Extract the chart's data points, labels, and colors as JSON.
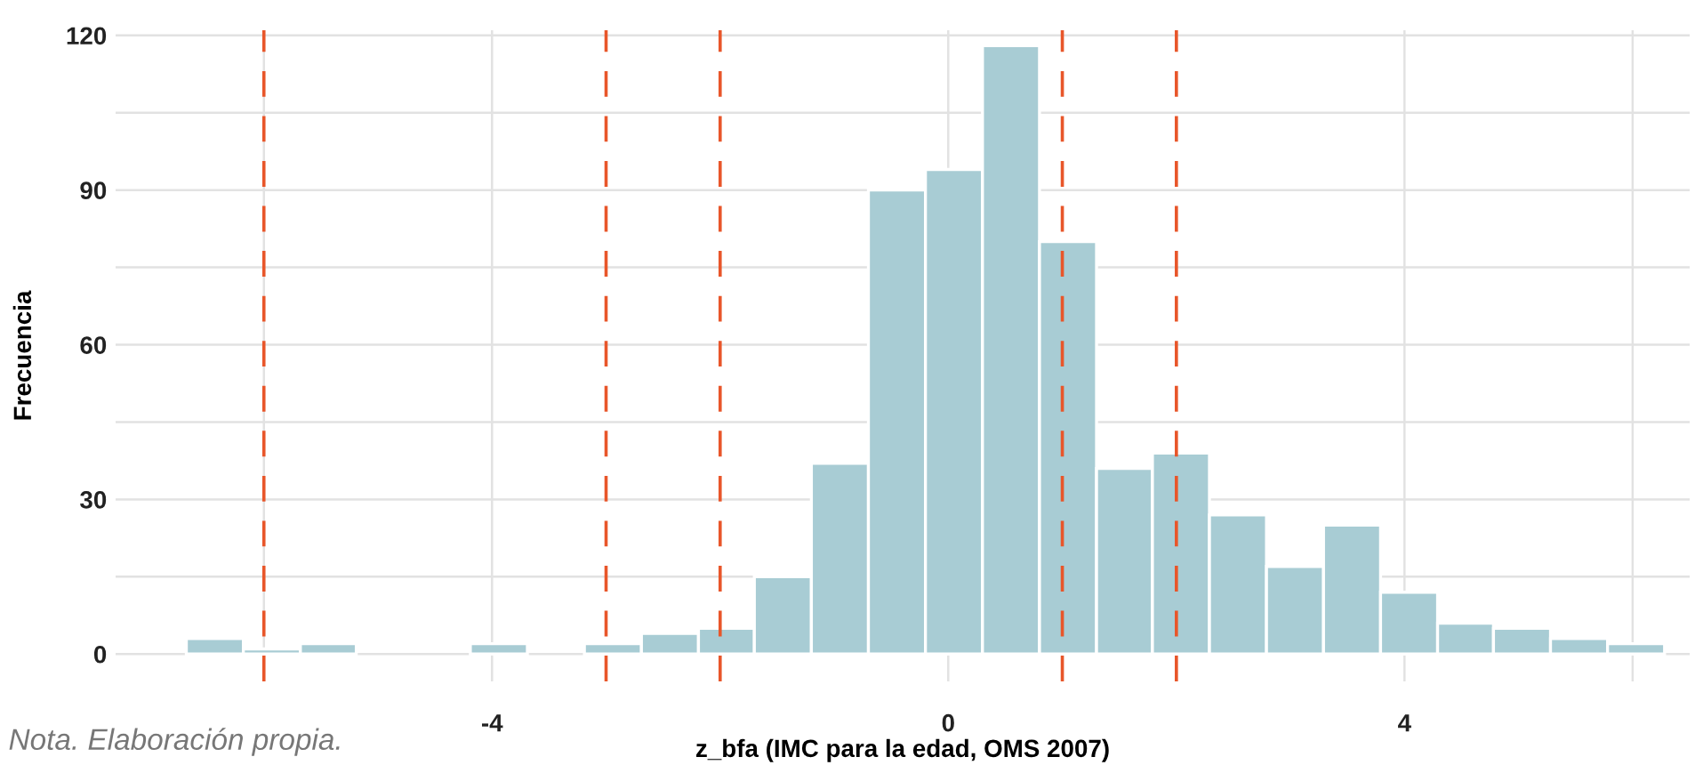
{
  "chart_data": {
    "type": "histogram",
    "xlabel": "z_bfa (IMC para la edad, OMS 2007)",
    "ylabel": "Frecuencia",
    "annotations": [
      "Nota. Elaboración propia."
    ],
    "bins": [
      -6.68,
      -6.18,
      -5.68,
      -5.19,
      -4.19,
      -3.69,
      -3.19,
      -2.69,
      -2.19,
      -1.7,
      -1.2,
      -0.7,
      -0.2,
      0.3,
      0.8,
      1.3,
      1.79,
      2.29,
      2.79,
      3.29,
      3.79,
      4.29,
      4.78,
      5.28,
      5.78,
      6.28
    ],
    "values": [
      3,
      1,
      2,
      0,
      2,
      0,
      2,
      4,
      5,
      15,
      37,
      90,
      94,
      118,
      80,
      36,
      39,
      27,
      17,
      25,
      12,
      6,
      5,
      3,
      2
    ],
    "color": "#a8ccd4",
    "xlim": [
      -7.3,
      6.5
    ],
    "xticks": [
      {
        "value": -6,
        "label": null
      },
      -4,
      0,
      4,
      {
        "value": 6,
        "label": null
      }
    ],
    "ylim": [
      -5.3,
      121
    ],
    "yticks": [
      0,
      {
        "value": 15,
        "label": null
      },
      30,
      {
        "value": 45,
        "label": null
      },
      60,
      {
        "value": 75,
        "label": null
      },
      90,
      {
        "value": 105,
        "label": null
      },
      120
    ],
    "grid": true,
    "legend": false,
    "ref_lines": [
      {
        "axis": "x",
        "value": -6,
        "color": "#e8562a",
        "line_style": "dashed"
      },
      {
        "axis": "x",
        "value": -3,
        "color": "#e8562a",
        "line_style": "dashed"
      },
      {
        "axis": "x",
        "value": -2,
        "color": "#e8562a",
        "line_style": "dashed"
      },
      {
        "axis": "x",
        "value": 1,
        "color": "#e8562a",
        "line_style": "dashed"
      },
      {
        "axis": "x",
        "value": 2,
        "color": "#e8562a",
        "line_style": "dashed"
      }
    ]
  }
}
